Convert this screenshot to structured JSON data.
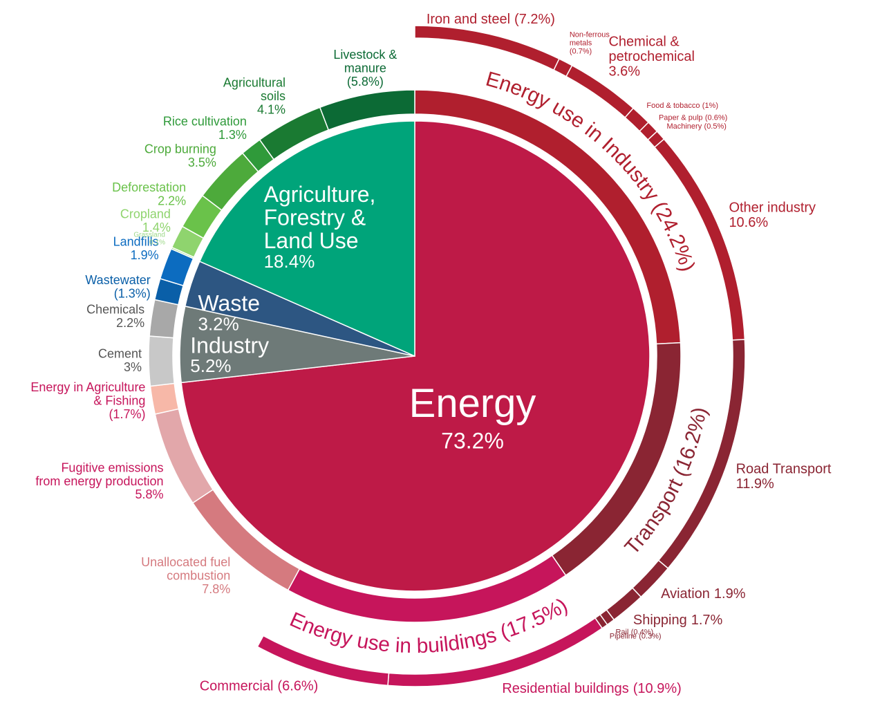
{
  "chart_data": {
    "type": "sunburst",
    "sectors": [
      {
        "name": "Energy",
        "value": 73.2,
        "value_label": "73.2%",
        "color": "#be1a47",
        "children": [
          {
            "name": "Energy use in Industry",
            "value": 24.2,
            "value_label": "(24.2%)",
            "color": "#b01f2e",
            "children": [
              {
                "name": "Iron and steel",
                "value": 7.2,
                "value_label": "(7.2%)",
                "color": "#b01f2e"
              },
              {
                "name": [
                  "Non-ferrous",
                  "metals"
                ],
                "value": 0.7,
                "value_label": "(0.7%)",
                "color": "#b01f2e"
              },
              {
                "name": [
                  "Chemical &",
                  "petrochemical"
                ],
                "value": 3.6,
                "value_label": "3.6%",
                "color": "#b01f2e"
              },
              {
                "name": "Food & tobacco",
                "value": 1,
                "value_label": "(1%)",
                "color": "#b01f2e"
              },
              {
                "name": "Paper & pulp",
                "value": 0.6,
                "value_label": "(0.6%)",
                "color": "#b01f2e"
              },
              {
                "name": "Machinery",
                "value": 0.5,
                "value_label": "(0.5%)",
                "color": "#b01f2e"
              },
              {
                "name": "Other industry",
                "value": 10.6,
                "value_label": "10.6%",
                "color": "#b01f2e"
              }
            ]
          },
          {
            "name": "Transport",
            "value": 16.2,
            "value_label": "(16.2%)",
            "color": "#8a2533",
            "children": [
              {
                "name": "Road Transport",
                "value": 11.9,
                "value_label": "11.9%",
                "color": "#8a2533"
              },
              {
                "name": "Aviation",
                "value": 1.9,
                "value_label": "1.9%",
                "color": "#8a2533"
              },
              {
                "name": "Shipping",
                "value": 1.7,
                "value_label": "1.7%",
                "color": "#8a2533"
              },
              {
                "name": "Rail",
                "value": 0.4,
                "value_label": "(0.4%)",
                "color": "#8a2533"
              },
              {
                "name": "Pipeline",
                "value": 0.3,
                "value_label": "(0.3%)",
                "color": "#8a2533"
              }
            ]
          },
          {
            "name": "Energy use in buildings",
            "value": 17.5,
            "value_label": "(17.5%)",
            "color": "#c6155b",
            "children": [
              {
                "name": "Residential buildings",
                "value": 10.9,
                "value_label": "(10.9%)",
                "color": "#c6155b"
              },
              {
                "name": "Commercial",
                "value": 6.6,
                "value_label": "(6.6%)",
                "color": "#c6155b"
              }
            ]
          },
          {
            "name": [
              "Unallocated fuel",
              "combustion"
            ],
            "value": 7.8,
            "value_label": "7.8%",
            "color": "#d57a7f"
          },
          {
            "name": [
              "Fugitive emissions",
              "from energy production"
            ],
            "value": 5.8,
            "value_label": "5.8%",
            "color": "#e2a7aa"
          },
          {
            "name": [
              "Energy in Agriculture",
              "& Fishing"
            ],
            "value": 1.7,
            "value_label": "(1.7%)",
            "color": "#f7b8a8"
          }
        ]
      },
      {
        "name": "Industry",
        "value": 5.2,
        "value_label": "5.2%",
        "color": "#6e7a78",
        "children": [
          {
            "name": "Cement",
            "value": 3,
            "value_label": "3%",
            "color": "#c8c8c8"
          },
          {
            "name": "Chemicals",
            "value": 2.2,
            "value_label": "2.2%",
            "color": "#a8a8a8"
          }
        ]
      },
      {
        "name": "Waste",
        "value": 3.2,
        "value_label": "3.2%",
        "color": "#2d5682",
        "children": [
          {
            "name": "Wastewater",
            "value": 1.3,
            "value_label": "(1.3%)",
            "color": "#0a5fa8"
          },
          {
            "name": "Landfills",
            "value": 1.9,
            "value_label": "1.9%",
            "color": "#0c6cc0"
          }
        ]
      },
      {
        "name": [
          "Agriculture,",
          "Forestry &",
          "Land Use"
        ],
        "value": 18.4,
        "value_label": "18.4%",
        "color": "#00a47a",
        "children": [
          {
            "name": "Grassland",
            "value": 0.1,
            "value_label": "0.1%",
            "color": "#9ed98a"
          },
          {
            "name": "Cropland",
            "value": 1.4,
            "value_label": "1.4%",
            "color": "#8fd46e"
          },
          {
            "name": "Deforestation",
            "value": 2.2,
            "value_label": "2.2%",
            "color": "#6ac24a"
          },
          {
            "name": "Crop burning",
            "value": 3.5,
            "value_label": "3.5%",
            "color": "#4daa3b"
          },
          {
            "name": "Rice cultivation",
            "value": 1.3,
            "value_label": "1.3%",
            "color": "#2f9a3a"
          },
          {
            "name": [
              "Agricultural",
              "soils"
            ],
            "value": 4.1,
            "value_label": "4.1%",
            "color": "#1a7a32"
          },
          {
            "name": [
              "Livestock &",
              "manure"
            ],
            "value": 5.8,
            "value_label": "(5.8%)",
            "color": "#0c6a35"
          }
        ]
      }
    ]
  }
}
